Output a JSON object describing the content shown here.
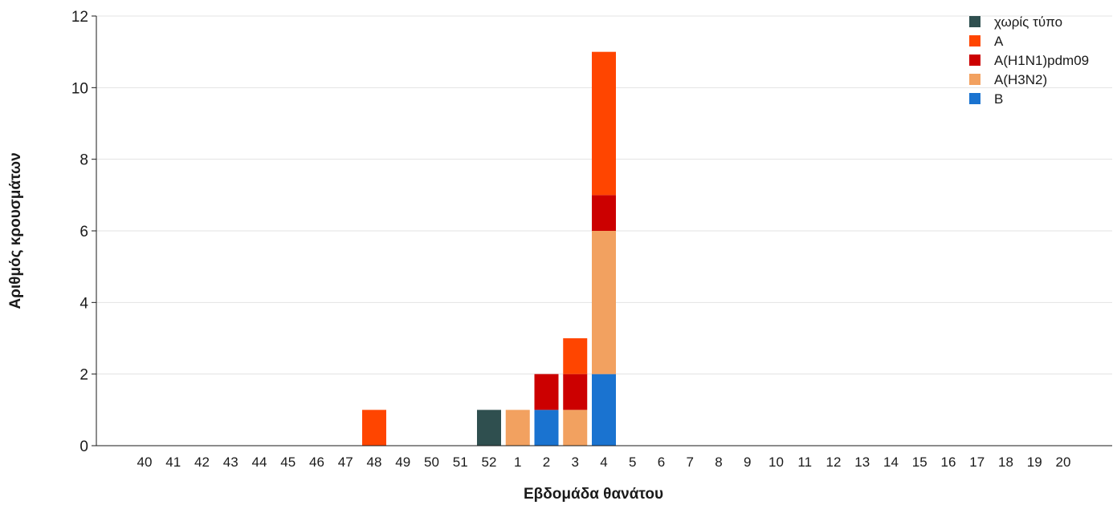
{
  "chart_data": {
    "type": "bar",
    "stacked": true,
    "xlabel": "Εβδομάδα θανάτου",
    "ylabel": "Αριθμός κρουσμάτων",
    "ylim": [
      0,
      12
    ],
    "yticks": [
      0,
      2,
      4,
      6,
      8,
      10,
      12
    ],
    "grid": true,
    "legend_position": "top-right",
    "categories": [
      "40",
      "41",
      "42",
      "43",
      "44",
      "45",
      "46",
      "47",
      "48",
      "49",
      "50",
      "51",
      "52",
      "1",
      "2",
      "3",
      "4",
      "5",
      "6",
      "7",
      "8",
      "9",
      "10",
      "11",
      "12",
      "13",
      "14",
      "15",
      "16",
      "17",
      "18",
      "19",
      "20"
    ],
    "series": [
      {
        "name": "B",
        "color": "#1a73d0",
        "values": [
          0,
          0,
          0,
          0,
          0,
          0,
          0,
          0,
          0,
          0,
          0,
          0,
          0,
          0,
          1,
          0,
          2,
          0,
          0,
          0,
          0,
          0,
          0,
          0,
          0,
          0,
          0,
          0,
          0,
          0,
          0,
          0,
          0
        ]
      },
      {
        "name": "A(H3N2)",
        "color": "#f2a160",
        "values": [
          0,
          0,
          0,
          0,
          0,
          0,
          0,
          0,
          0,
          0,
          0,
          0,
          0,
          1,
          0,
          1,
          4,
          0,
          0,
          0,
          0,
          0,
          0,
          0,
          0,
          0,
          0,
          0,
          0,
          0,
          0,
          0,
          0
        ]
      },
      {
        "name": "A(H1N1)pdm09",
        "color": "#cc0000",
        "values": [
          0,
          0,
          0,
          0,
          0,
          0,
          0,
          0,
          0,
          0,
          0,
          0,
          0,
          0,
          1,
          1,
          1,
          0,
          0,
          0,
          0,
          0,
          0,
          0,
          0,
          0,
          0,
          0,
          0,
          0,
          0,
          0,
          0
        ]
      },
      {
        "name": "A",
        "color": "#ff4500",
        "values": [
          0,
          0,
          0,
          0,
          0,
          0,
          0,
          0,
          1,
          0,
          0,
          0,
          0,
          0,
          0,
          1,
          4,
          0,
          0,
          0,
          0,
          0,
          0,
          0,
          0,
          0,
          0,
          0,
          0,
          0,
          0,
          0,
          0
        ]
      },
      {
        "name": "χωρίς τύπο",
        "color": "#2f4f4f",
        "values": [
          0,
          0,
          0,
          0,
          0,
          0,
          0,
          0,
          0,
          0,
          0,
          0,
          1,
          0,
          0,
          0,
          0,
          0,
          0,
          0,
          0,
          0,
          0,
          0,
          0,
          0,
          0,
          0,
          0,
          0,
          0,
          0,
          0
        ]
      }
    ],
    "legend_order": [
      "χωρίς τύπο",
      "A",
      "A(H1N1)pdm09",
      "A(H3N2)",
      "B"
    ]
  }
}
